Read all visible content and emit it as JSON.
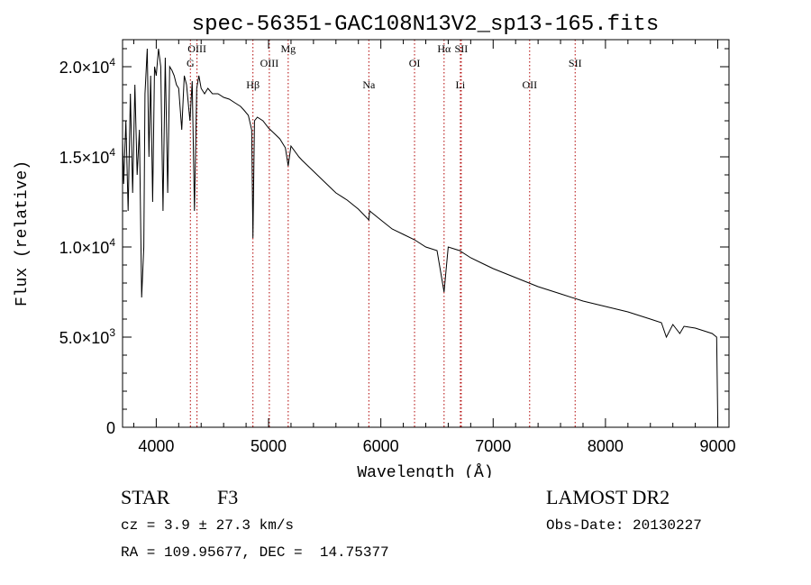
{
  "chart_data": {
    "type": "line",
    "title": "spec-56351-GAC108N13V2_sp13-165.fits",
    "xlabel": "Wavelength (Å)",
    "ylabel": "Flux (relative)",
    "xlim": [
      3700,
      9100
    ],
    "ylim": [
      0,
      21500
    ],
    "x_ticks": [
      4000,
      5000,
      6000,
      7000,
      8000,
      9000
    ],
    "x_tick_labels": [
      "4000",
      "5000",
      "6000",
      "7000",
      "8000",
      "9000"
    ],
    "y_ticks": [
      0,
      5000,
      10000,
      15000,
      20000
    ],
    "y_tick_labels": [
      {
        "mantissa": "0",
        "exp": ""
      },
      {
        "mantissa": "5.0×10",
        "exp": "3"
      },
      {
        "mantissa": "1.0×10",
        "exp": "4"
      },
      {
        "mantissa": "1.5×10",
        "exp": "4"
      },
      {
        "mantissa": "2.0×10",
        "exp": "4"
      }
    ],
    "line_color": "#000000",
    "marker_color": "#b00000",
    "spectral_lines": [
      {
        "label": "G",
        "wavelength": 4304,
        "label_flux": 20000
      },
      {
        "label": "OIII",
        "wavelength": 4363,
        "label_flux": 20800
      },
      {
        "label": "Hβ",
        "wavelength": 4861,
        "label_flux": 18800
      },
      {
        "label": "OIII",
        "wavelength": 5007,
        "label_flux": 20000
      },
      {
        "label": "Mg",
        "wavelength": 5175,
        "label_flux": 20800
      },
      {
        "label": "Na",
        "wavelength": 5893,
        "label_flux": 18800
      },
      {
        "label": "OI",
        "wavelength": 6300,
        "label_flux": 20000
      },
      {
        "label": "Hα",
        "wavelength": 6563,
        "label_flux": 20800
      },
      {
        "label": "SII",
        "wavelength": 6716,
        "label_flux": 20800
      },
      {
        "label": "Li",
        "wavelength": 6708,
        "label_flux": 18800
      },
      {
        "label": "OII",
        "wavelength": 7325,
        "label_flux": 18800
      },
      {
        "label": "SII",
        "wavelength": 7730,
        "label_flux": 20000
      }
    ],
    "spectrum": {
      "x": [
        3700,
        3710,
        3730,
        3750,
        3770,
        3790,
        3810,
        3830,
        3850,
        3870,
        3889,
        3900,
        3920,
        3935,
        3950,
        3968,
        3985,
        4000,
        4020,
        4040,
        4060,
        4080,
        4102,
        4120,
        4140,
        4160,
        4180,
        4200,
        4227,
        4250,
        4270,
        4300,
        4320,
        4340,
        4360,
        4380,
        4400,
        4430,
        4460,
        4500,
        4550,
        4600,
        4650,
        4700,
        4750,
        4780,
        4820,
        4850,
        4861,
        4875,
        4900,
        4950,
        5000,
        5050,
        5100,
        5150,
        5175,
        5200,
        5270,
        5300,
        5400,
        5500,
        5600,
        5700,
        5800,
        5893,
        5900,
        6000,
        6100,
        6200,
        6300,
        6400,
        6500,
        6563,
        6600,
        6700,
        6800,
        6900,
        7000,
        7200,
        7400,
        7600,
        7800,
        8000,
        8200,
        8400,
        8498,
        8542,
        8600,
        8662,
        8700,
        8800,
        8900,
        8950,
        8990,
        9000
      ],
      "y": [
        16000,
        13500,
        17000,
        12000,
        18500,
        13000,
        19000,
        14000,
        16500,
        7200,
        10000,
        18500,
        21000,
        15000,
        19500,
        12500,
        20000,
        19500,
        21000,
        20000,
        12000,
        20500,
        13000,
        20000,
        19800,
        19500,
        19000,
        18800,
        16500,
        19500,
        19000,
        17000,
        19200,
        12000,
        18800,
        19500,
        18800,
        18500,
        18800,
        18500,
        18500,
        18300,
        18200,
        18000,
        17800,
        17600,
        17300,
        16500,
        10500,
        17000,
        17200,
        17000,
        16600,
        16300,
        16000,
        15500,
        14500,
        15600,
        15000,
        14800,
        14200,
        13600,
        13000,
        12600,
        12100,
        11500,
        12000,
        11500,
        11000,
        10700,
        10400,
        10000,
        9800,
        7500,
        10000,
        9800,
        9400,
        9100,
        8800,
        8300,
        7800,
        7400,
        7000,
        6700,
        6400,
        6000,
        5800,
        5000,
        5700,
        5200,
        5600,
        5500,
        5300,
        5200,
        5000,
        500
      ]
    }
  },
  "info": {
    "object_class": "STAR",
    "subclass": "F3",
    "redshift": "cz = 3.9 ± 27.3 km/s",
    "coords": "RA = 109.95677, DEC =  14.75377",
    "survey": "LAMOST DR2",
    "obs_date": "Obs-Date: 20130227"
  }
}
